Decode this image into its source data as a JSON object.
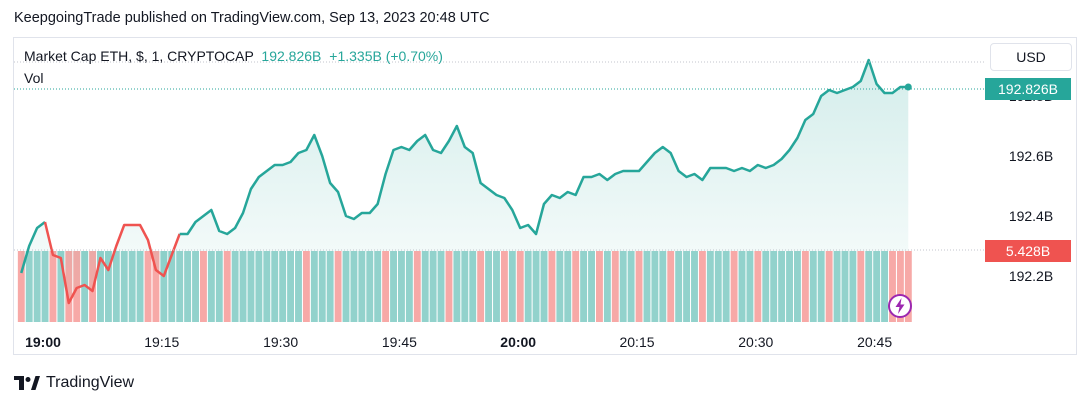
{
  "publisher": "KeepgoingTrade published on TradingView.com, Sep 13, 2023 20:48 UTC",
  "legend": {
    "symbol": "Market Cap ETH, $, 1, CRYPTOCAP",
    "price": "192.826B",
    "change": "+1.335B (+0.70%)",
    "volume_label": "Vol"
  },
  "currency_button": "USD",
  "price_tag": "192.826B",
  "volume_tag": "5.428B",
  "branding": "TradingView",
  "colors": {
    "up": "#26a69a",
    "down": "#ef5350",
    "vol_up": "#92d2cc",
    "vol_down": "#f7a9a7"
  },
  "icons": {
    "brand": "tradingview-logo-icon",
    "bolt": "lightning-bolt-icon"
  },
  "chart_data": {
    "type": "area",
    "y_tick_labels": [
      "192.2B",
      "192.4B",
      "192.6B",
      "192.8B"
    ],
    "y_tick_values": [
      192.2,
      192.4,
      192.6,
      192.8
    ],
    "ylim": [
      192.03,
      192.98
    ],
    "x_tick_labels": [
      "19:00",
      "19:15",
      "19:30",
      "19:45",
      "20:00",
      "20:15",
      "20:30",
      "20:45"
    ],
    "x_tick_bold": [
      true,
      false,
      false,
      false,
      true,
      false,
      false,
      false
    ],
    "x_tick_minutes": [
      0,
      15,
      30,
      45,
      60,
      75,
      90,
      105
    ],
    "start_time": "18:57",
    "interval_minutes": 1,
    "price_y": [
      192.21,
      192.3,
      192.36,
      192.38,
      192.27,
      192.26,
      192.11,
      192.16,
      192.17,
      192.15,
      192.26,
      192.22,
      192.3,
      192.37,
      192.37,
      192.37,
      192.32,
      192.22,
      192.2,
      192.27,
      192.34,
      192.34,
      192.38,
      192.4,
      192.42,
      192.35,
      192.34,
      192.36,
      192.41,
      192.49,
      192.53,
      192.55,
      192.57,
      192.57,
      192.58,
      192.61,
      192.62,
      192.67,
      192.6,
      192.51,
      192.48,
      192.4,
      192.39,
      192.41,
      192.41,
      192.44,
      192.54,
      192.62,
      192.63,
      192.62,
      192.65,
      192.67,
      192.62,
      192.61,
      192.65,
      192.7,
      192.63,
      192.61,
      192.51,
      192.49,
      192.47,
      192.46,
      192.42,
      192.36,
      192.37,
      192.34,
      192.44,
      192.47,
      192.46,
      192.48,
      192.47,
      192.53,
      192.53,
      192.54,
      192.52,
      192.54,
      192.55,
      192.55,
      192.55,
      192.58,
      192.61,
      192.63,
      192.61,
      192.55,
      192.53,
      192.54,
      192.52,
      192.56,
      192.56,
      192.56,
      192.55,
      192.56,
      192.55,
      192.57,
      192.56,
      192.57,
      192.59,
      192.62,
      192.66,
      192.72,
      192.74,
      192.8,
      192.82,
      192.81,
      192.82,
      192.83,
      192.85,
      192.92,
      192.84,
      192.81,
      192.81,
      192.83,
      192.83
    ],
    "volume_colors": [
      "d",
      "u",
      "u",
      "u",
      "d",
      "u",
      "d",
      "d",
      "u",
      "d",
      "u",
      "u",
      "u",
      "u",
      "u",
      "u",
      "d",
      "d",
      "u",
      "u",
      "u",
      "u",
      "u",
      "d",
      "u",
      "u",
      "d",
      "u",
      "u",
      "u",
      "u",
      "u",
      "u",
      "u",
      "u",
      "u",
      "d",
      "u",
      "u",
      "u",
      "d",
      "u",
      "u",
      "u",
      "u",
      "u",
      "d",
      "u",
      "u",
      "u",
      "d",
      "u",
      "u",
      "u",
      "d",
      "u",
      "u",
      "u",
      "d",
      "u",
      "u",
      "d",
      "u",
      "d",
      "u",
      "u",
      "u",
      "d",
      "u",
      "u",
      "d",
      "u",
      "u",
      "d",
      "u",
      "d",
      "u",
      "u",
      "d",
      "u",
      "u",
      "u",
      "d",
      "u",
      "u",
      "u",
      "d",
      "u",
      "u",
      "u",
      "d",
      "u",
      "u",
      "d",
      "u",
      "u",
      "u",
      "u",
      "u",
      "d",
      "u",
      "u",
      "d",
      "u",
      "u",
      "u",
      "d",
      "u",
      "u",
      "u",
      "d",
      "d",
      "d"
    ]
  }
}
